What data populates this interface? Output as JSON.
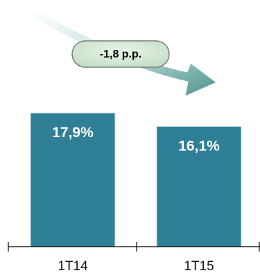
{
  "chart_data": {
    "type": "bar",
    "categories": [
      "1T14",
      "1T15"
    ],
    "values": [
      17.9,
      16.1
    ],
    "value_labels": [
      "17,9%",
      "16,1%"
    ],
    "ylim": [
      0,
      17.9
    ],
    "grid": false,
    "annotations": [
      {
        "text": "-1,8 p.p.",
        "kind": "downward-trend-arrow"
      }
    ]
  },
  "colors": {
    "bar": "#2F7F96",
    "arrow_dark": "#4E938F",
    "arrow_light": "#DDEFEE",
    "bubble_fill": "#CDE5CF",
    "axis": "#000000"
  }
}
